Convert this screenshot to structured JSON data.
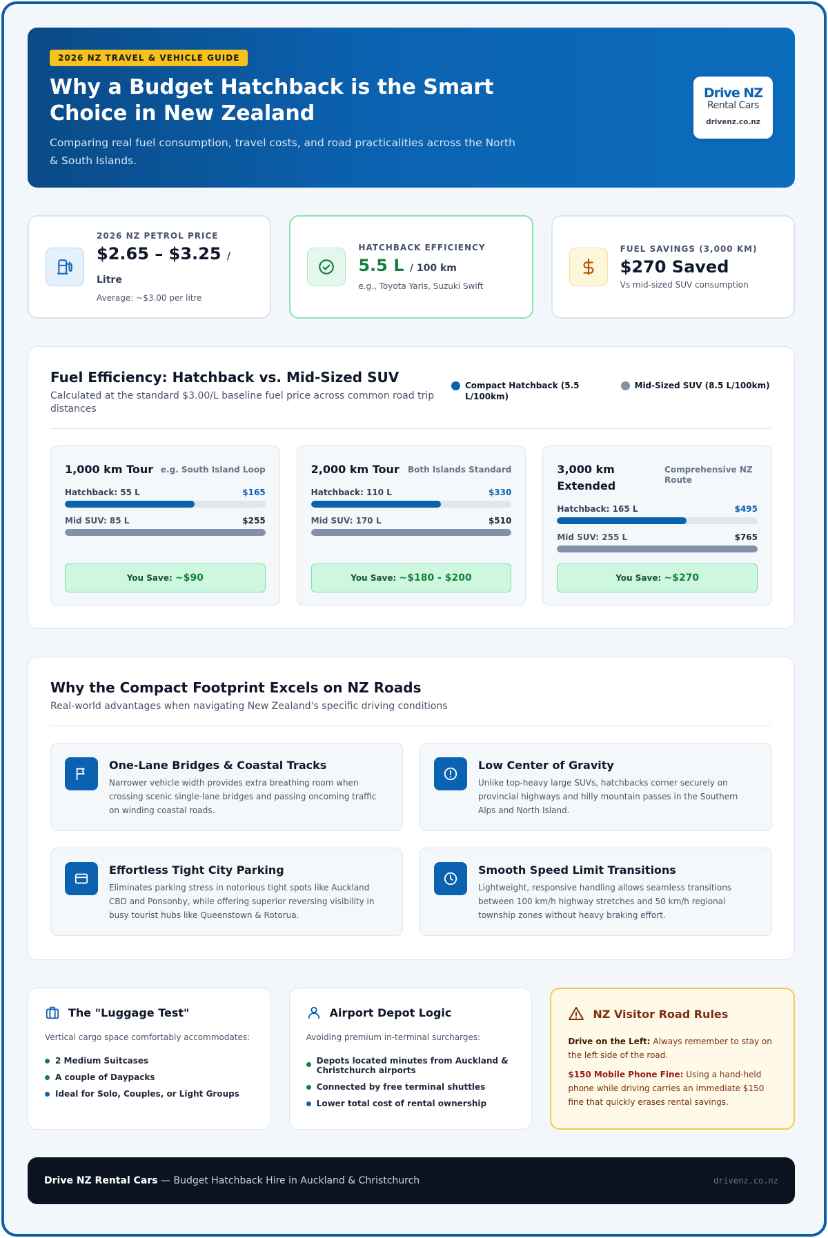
{
  "hero": {
    "badge": "2026 NZ TRAVEL & VEHICLE GUIDE",
    "title": "Why a Budget Hatchback is the Smart Choice in New Zealand",
    "subtitle": "Comparing real fuel consumption, travel costs, and road practicalities across the North & South Islands.",
    "logo_main": "Drive NZ",
    "logo_sub": "Rental Cars",
    "logo_url": "drivenz.co.nz"
  },
  "stats": [
    {
      "icon": "fuel-pump-icon",
      "label": "2026 NZ PETROL PRICE",
      "value": "$2.65 – $3.25",
      "unit": "/ Litre",
      "note": "Average: ~$3.00 per litre"
    },
    {
      "icon": "check-circle-icon",
      "label": "HATCHBACK EFFICIENCY",
      "value": "5.5 L",
      "unit": "/ 100 km",
      "note": "e.g., Toyota Yaris, Suzuki Swift"
    },
    {
      "icon": "dollar-icon",
      "label": "FUEL SAVINGS (3,000 KM)",
      "value": "$270 Saved",
      "unit": "",
      "note": "Vs mid-sized SUV consumption"
    }
  ],
  "efficiency": {
    "title": "Fuel Efficiency: Hatchback vs. Mid-Sized SUV",
    "subtitle": "Calculated at the standard $3.00/L baseline fuel price across common road trip distances",
    "legend_hatch": "Compact Hatchback (5.5 L/100km)",
    "legend_suv": "Mid-Sized SUV (8.5 L/100km)",
    "colors": {
      "hatch": "#0b62b0",
      "suv": "#8290a8"
    }
  },
  "chart_data": {
    "type": "bar",
    "categories": [
      "1,000 km Tour",
      "2,000 km Tour",
      "3,000 km Extended"
    ],
    "series": [
      {
        "name": "Compact Hatchback (5.5 L/100km)",
        "litres": [
          55,
          110,
          165
        ],
        "cost": [
          165,
          330,
          495
        ]
      },
      {
        "name": "Mid-Sized SUV (8.5 L/100km)",
        "litres": [
          85,
          170,
          255
        ],
        "cost": [
          255,
          510,
          765
        ]
      }
    ],
    "tours": [
      {
        "name": "1,000 km Tour",
        "tag": "e.g. South Island Loop",
        "hatch_label": "Hatchback: 55 L",
        "hatch_price": "$165",
        "hatch_litres": 55,
        "suv_label": "Mid SUV: 85 L",
        "suv_price": "$255",
        "suv_litres": 85,
        "save_prefix": "You Save:",
        "save_value": "~$90"
      },
      {
        "name": "2,000 km Tour",
        "tag": "Both Islands Standard",
        "hatch_label": "Hatchback: 110 L",
        "hatch_price": "$330",
        "hatch_litres": 110,
        "suv_label": "Mid SUV: 170 L",
        "suv_price": "$510",
        "suv_litres": 170,
        "save_prefix": "You Save:",
        "save_value": "~$180 - $200"
      },
      {
        "name": "3,000 km Extended",
        "tag": "Comprehensive NZ Route",
        "hatch_label": "Hatchback: 165 L",
        "hatch_price": "$495",
        "hatch_litres": 165,
        "suv_label": "Mid SUV: 255 L",
        "suv_price": "$765",
        "suv_litres": 255,
        "save_prefix": "You Save:",
        "save_value": "~$270"
      }
    ]
  },
  "advantages": {
    "title": "Why the Compact Footprint Excels on NZ Roads",
    "subtitle": "Real-world advantages when navigating New Zealand's specific driving conditions",
    "items": [
      {
        "icon": "flag-icon",
        "title": "One-Lane Bridges & Coastal Tracks",
        "text": "Narrower vehicle width provides extra breathing room when crossing scenic single-lane bridges and passing oncoming traffic on winding coastal roads."
      },
      {
        "icon": "alert-circle-icon",
        "title": "Low Center of Gravity",
        "text": "Unlike top-heavy large SUVs, hatchbacks corner securely on provincial highways and hilly mountain passes in the Southern Alps and North Island."
      },
      {
        "icon": "parking-card-icon",
        "title": "Effortless Tight City Parking",
        "text": "Eliminates parking stress in notorious tight spots like Auckland CBD and Ponsonby, while offering superior reversing visibility in busy tourist hubs like Queenstown & Rotorua."
      },
      {
        "icon": "clock-icon",
        "title": "Smooth Speed Limit Transitions",
        "text": "Lightweight, responsive handling allows seamless transitions between 100 km/h highway stretches and 50 km/h regional township zones without heavy braking effort."
      }
    ]
  },
  "luggage": {
    "title": "The \"Luggage Test\"",
    "desc": "Vertical cargo space comfortably accommodates:",
    "items": [
      "2 Medium Suitcases",
      "A couple of Daypacks",
      "Ideal for Solo, Couples, or Light Groups"
    ]
  },
  "airport": {
    "title": "Airport Depot Logic",
    "desc": "Avoiding premium in-terminal surcharges:",
    "items": [
      "Depots located minutes from Auckland & Christchurch airports",
      "Connected by free terminal shuttles",
      "Lower total cost of rental ownership"
    ]
  },
  "rules": {
    "title": "NZ Visitor Road Rules",
    "rule1_bold": "Drive on the Left:",
    "rule1_text": " Always remember to stay on the left side of the road.",
    "rule2_bold": "$150 Mobile Phone Fine:",
    "rule2_text": " Using a hand-held phone while driving carries an immediate $150 fine that quickly erases rental savings."
  },
  "footer": {
    "brand": "Drive NZ Rental Cars",
    "tagline": " — Budget Hatchback Hire in Auckland & Christchurch",
    "url": "drivenz.co.nz"
  }
}
